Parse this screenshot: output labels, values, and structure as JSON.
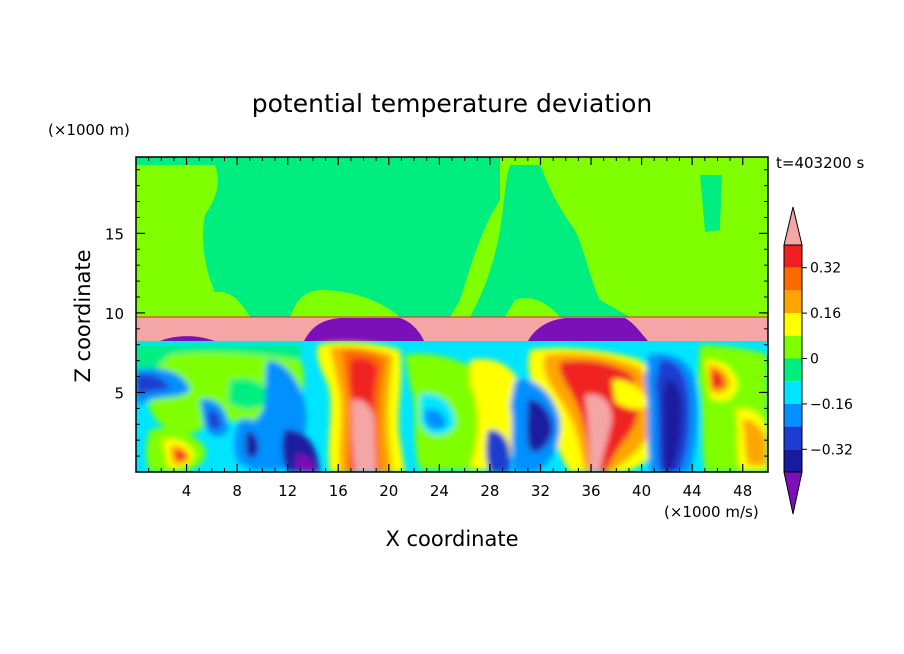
{
  "chart_data": {
    "type": "heatmap",
    "title": "potential temperature deviation",
    "xlabel": "X coordinate",
    "ylabel": "Z coordinate",
    "x_unit": "(×1000 m/s)",
    "y_unit": "(×1000 m)",
    "time_label": "t=403200 s",
    "xlim": [
      0,
      50
    ],
    "ylim": [
      0,
      19.8
    ],
    "x_ticks": [
      4,
      8,
      12,
      16,
      20,
      24,
      28,
      32,
      36,
      40,
      44,
      48
    ],
    "y_ticks": [
      5,
      10,
      15
    ],
    "colorbar": {
      "labels": [
        {
          "value": 0.32,
          "text": "0.32"
        },
        {
          "value": 0.16,
          "text": "0.16"
        },
        {
          "value": 0,
          "text": "0"
        },
        {
          "value": -0.16,
          "text": "−0.16"
        },
        {
          "value": -0.32,
          "text": "−0.32"
        }
      ],
      "levels": [
        {
          "min": 0.4,
          "max": null,
          "color": "#f4a6a6"
        },
        {
          "min": 0.32,
          "max": 0.4,
          "color": "#f02020"
        },
        {
          "min": 0.24,
          "max": 0.32,
          "color": "#ff6a00"
        },
        {
          "min": 0.16,
          "max": 0.24,
          "color": "#ffa500"
        },
        {
          "min": 0.08,
          "max": 0.16,
          "color": "#ffff00"
        },
        {
          "min": 0.0,
          "max": 0.08,
          "color": "#80ff00"
        },
        {
          "min": -0.08,
          "max": 0.0,
          "color": "#00ee80"
        },
        {
          "min": -0.16,
          "max": -0.08,
          "color": "#00e5ff"
        },
        {
          "min": -0.24,
          "max": -0.16,
          "color": "#0090ff"
        },
        {
          "min": -0.32,
          "max": -0.24,
          "color": "#1e3cd0"
        },
        {
          "min": -0.4,
          "max": -0.32,
          "color": "#1a1aa0"
        },
        {
          "min": null,
          "max": -0.4,
          "color": "#7b0fb8"
        }
      ]
    }
  }
}
